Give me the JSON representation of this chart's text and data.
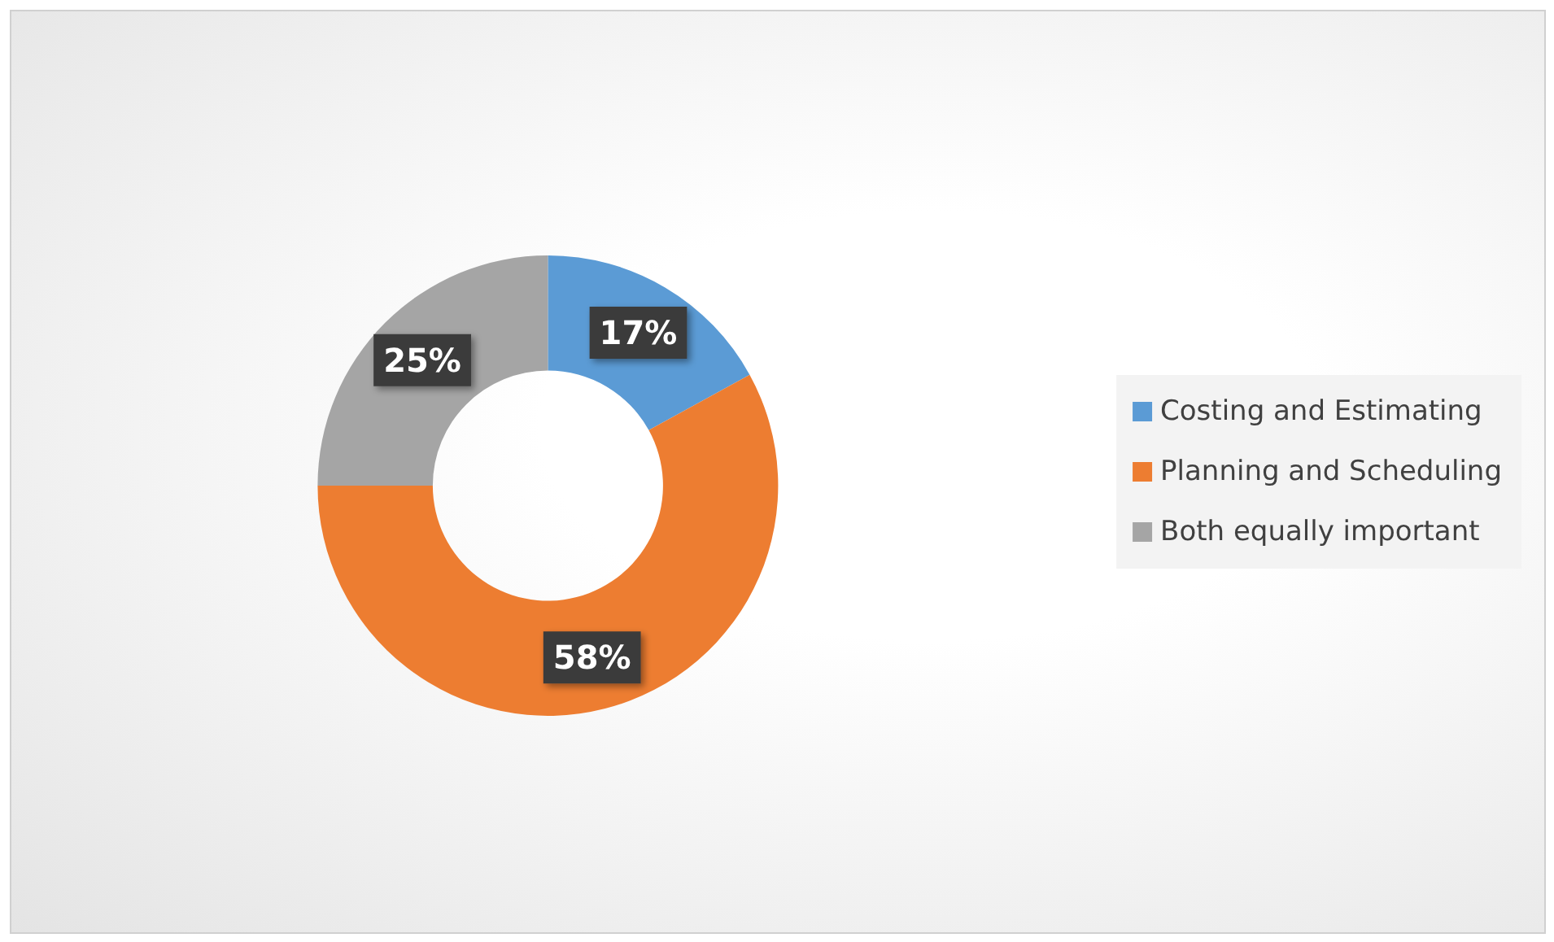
{
  "chart_data": {
    "type": "donut",
    "categories": [
      "Costing and Estimating",
      "Planning and Scheduling",
      "Both equally important"
    ],
    "values": [
      17,
      58,
      25
    ],
    "colors": [
      "#5b9bd5",
      "#ed7d31",
      "#a5a5a5"
    ],
    "value_labels": [
      "17%",
      "58%",
      "25%"
    ],
    "legend": "right"
  }
}
